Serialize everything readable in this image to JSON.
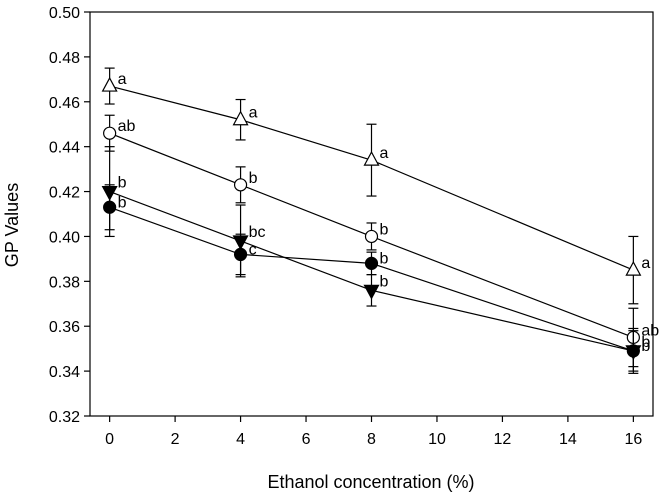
{
  "chart_data": {
    "type": "line",
    "title": "",
    "xlabel": "Ethanol concentration (%)",
    "ylabel": "GP Values",
    "xlim": [
      -0.6,
      16.6
    ],
    "ylim": [
      0.32,
      0.5
    ],
    "xticks": [
      0,
      2,
      4,
      6,
      8,
      10,
      12,
      14,
      16
    ],
    "yticks": [
      0.32,
      0.34,
      0.36,
      0.38,
      0.4,
      0.42,
      0.44,
      0.46,
      0.48,
      0.5
    ],
    "ytick_labels": [
      "0.32",
      "0.34",
      "0.36",
      "0.38",
      "0.40",
      "0.42",
      "0.44",
      "0.46",
      "0.48",
      "0.50"
    ],
    "x": [
      0,
      4,
      8,
      16
    ],
    "grid": false,
    "series": [
      {
        "name": "open-triangle",
        "marker": "triangle-up-open",
        "values": [
          0.467,
          0.452,
          0.434,
          0.385
        ],
        "errors": [
          0.008,
          0.009,
          0.016,
          0.015
        ],
        "labels": [
          "a",
          "a",
          "a",
          "a"
        ]
      },
      {
        "name": "open-circle",
        "marker": "circle-open",
        "values": [
          0.446,
          0.423,
          0.4,
          0.355
        ],
        "errors": [
          0.008,
          0.008,
          0.006,
          0.013
        ],
        "labels": [
          "ab",
          "b",
          "b",
          "ab"
        ]
      },
      {
        "name": "filled-triangle-down",
        "marker": "triangle-down-filled",
        "values": [
          0.42,
          0.398,
          0.376,
          0.349
        ],
        "errors": [
          0.02,
          0.016,
          0.007,
          0.01
        ],
        "labels": [
          "b",
          "bc",
          "b",
          "b"
        ]
      },
      {
        "name": "filled-circle",
        "marker": "circle-filled",
        "values": [
          0.413,
          0.392,
          0.388,
          0.349
        ],
        "errors": [
          0.01,
          0.009,
          0.005,
          0.009
        ],
        "labels": [
          "b",
          "c",
          "b",
          "b"
        ]
      }
    ]
  }
}
